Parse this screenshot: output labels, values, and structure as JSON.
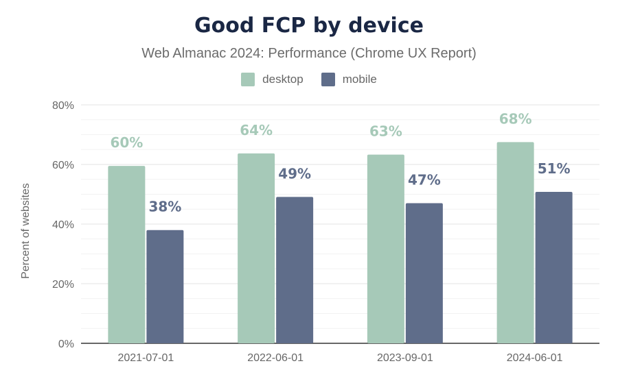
{
  "title": "Good FCP by device",
  "subtitle": "Web Almanac 2024: Performance (Chrome UX Report)",
  "colors": {
    "desktop": "#a6c9b8",
    "mobile": "#5f6d8a",
    "title": "#1a2744"
  },
  "chart_data": {
    "type": "bar",
    "title": "Good FCP by device",
    "subtitle": "Web Almanac 2024: Performance (Chrome UX Report)",
    "xlabel": "",
    "ylabel": "Percent of websites",
    "ylim": [
      0,
      80
    ],
    "yticks": [
      "0%",
      "20%",
      "40%",
      "60%",
      "80%"
    ],
    "ytick_values": [
      0,
      20,
      40,
      60,
      80
    ],
    "categories": [
      "2021-07-01",
      "2022-06-01",
      "2023-09-01",
      "2024-06-01"
    ],
    "series": [
      {
        "name": "desktop",
        "values": [
          59.5,
          63.7,
          63.3,
          67.5
        ],
        "labels": [
          "60%",
          "64%",
          "63%",
          "68%"
        ]
      },
      {
        "name": "mobile",
        "values": [
          38.0,
          49.1,
          47.0,
          50.8
        ],
        "labels": [
          "38%",
          "49%",
          "47%",
          "51%"
        ]
      }
    ],
    "grid": true,
    "legend_position": "top-center"
  }
}
